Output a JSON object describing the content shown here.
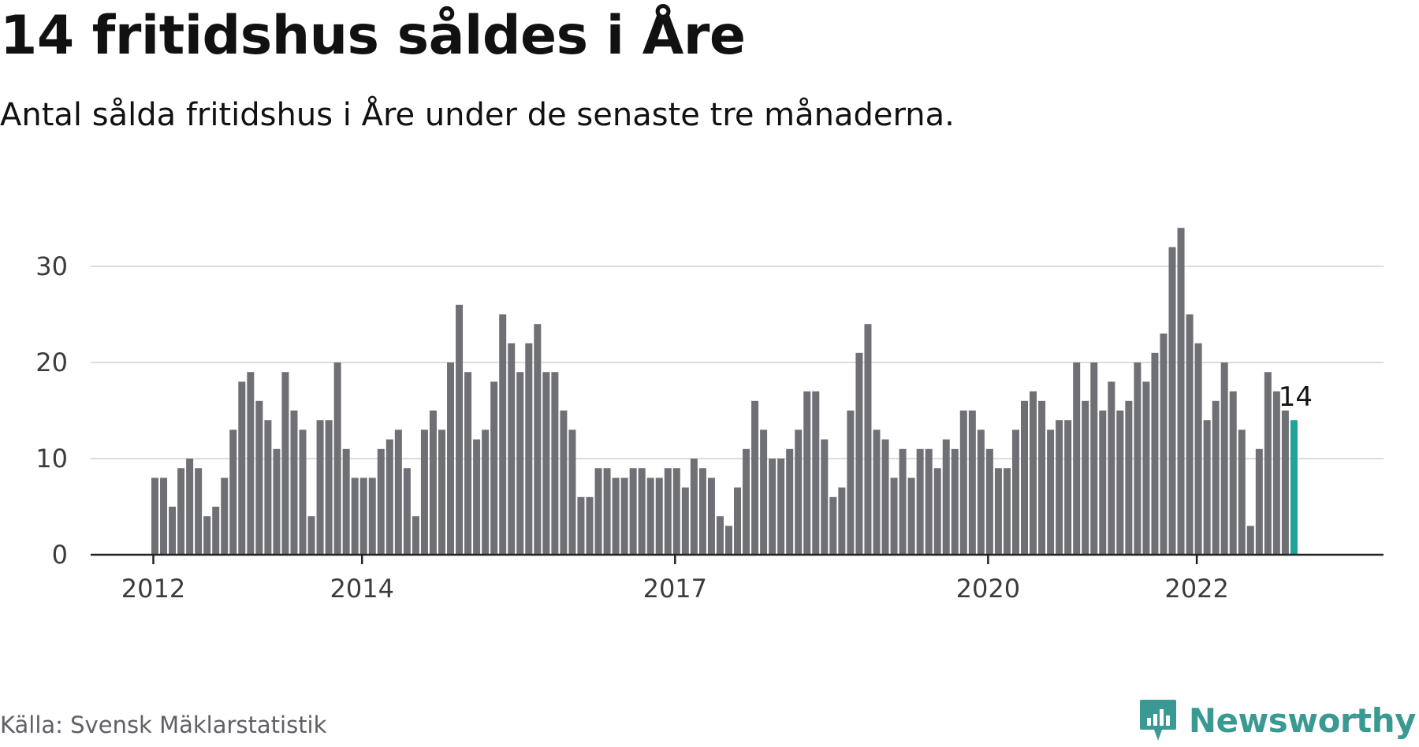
{
  "header": {
    "title": "14 fritidshus såldes i Åre",
    "subtitle": "Antal sålda fritidshus i Åre under de senaste tre månaderna."
  },
  "footer": {
    "source": "Källa: Svensk Mäklarstatistik",
    "logo_text": "Newsworthy",
    "logo_icon": "newsworthy-logo-icon"
  },
  "colors": {
    "bar": "#6f6f76",
    "highlight": "#1fa39a",
    "grid": "#dcdcdc",
    "axis": "#222222",
    "logo": "#3a9a93"
  },
  "chart_data": {
    "type": "bar",
    "title": "14 fritidshus såldes i Åre",
    "subtitle": "Antal sålda fritidshus i Åre under de senaste tre månaderna.",
    "xlabel": "",
    "ylabel": "",
    "x_start": "2012-01",
    "x_end": "2023-01",
    "frequency": "monthly",
    "x_ticks": [
      "2012",
      "2014",
      "2017",
      "2020",
      "2022"
    ],
    "y_ticks": [
      0,
      10,
      20,
      30
    ],
    "ylim": [
      0,
      35
    ],
    "grid": true,
    "values": [
      8,
      8,
      5,
      9,
      10,
      9,
      4,
      5,
      8,
      13,
      18,
      19,
      16,
      14,
      11,
      19,
      15,
      13,
      4,
      14,
      14,
      20,
      11,
      8,
      8,
      8,
      11,
      12,
      13,
      9,
      4,
      13,
      15,
      13,
      20,
      26,
      19,
      12,
      13,
      18,
      25,
      22,
      19,
      22,
      24,
      19,
      19,
      15,
      13,
      6,
      6,
      9,
      9,
      8,
      8,
      9,
      9,
      8,
      8,
      9,
      9,
      7,
      10,
      9,
      8,
      4,
      3,
      7,
      11,
      16,
      13,
      10,
      10,
      11,
      13,
      17,
      17,
      12,
      6,
      7,
      15,
      21,
      24,
      13,
      12,
      8,
      11,
      8,
      11,
      11,
      9,
      12,
      11,
      15,
      15,
      13,
      11,
      9,
      9,
      13,
      16,
      17,
      16,
      13,
      14,
      14,
      20,
      16,
      20,
      15,
      18,
      15,
      16,
      20,
      18,
      21,
      23,
      32,
      34,
      25,
      22,
      14,
      16,
      20,
      17,
      13,
      3,
      11,
      19,
      17,
      15,
      14
    ],
    "highlight_last": true,
    "annotation": "14"
  }
}
